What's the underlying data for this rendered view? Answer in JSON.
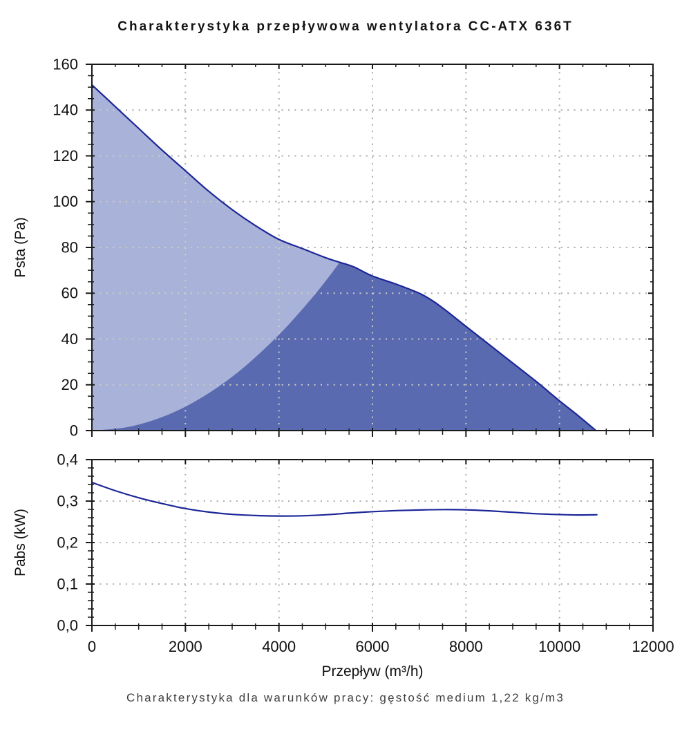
{
  "page": {
    "title": "Charakterystyka przepływowa wentylatora CC-ATX 636T",
    "caption": "Charakterystyka dla warunków pracy: gęstość medium 1,22 kg/m3"
  },
  "colors": {
    "fill_light": "#a9b2d8",
    "fill_dark": "#5a6ab0",
    "curve": "#1c2798",
    "grid_on_white": "#aeaeab",
    "grid_on_fill": "#cfcec2",
    "axis": "#1a1a1a",
    "text": "#111111",
    "caption_text": "#3f3f3f"
  },
  "chart_data": [
    {
      "type": "area",
      "title": "Charakterystyka przepływowa wentylatora CC-ATX 636T",
      "ylabel": "Psta (Pa)",
      "ylim": [
        0,
        160
      ],
      "yticks": [
        0,
        20,
        40,
        60,
        80,
        100,
        120,
        140,
        160
      ],
      "ytick_labels": [
        "0",
        "20",
        "40",
        "60",
        "80",
        "100",
        "120",
        "140",
        "160"
      ],
      "y_minor_step": 5,
      "xlim": [
        0,
        12000
      ],
      "xticks": [
        0,
        2000,
        4000,
        6000,
        8000,
        10000,
        12000
      ],
      "x_minor_step": 500,
      "grid_x": [
        2000,
        4000,
        6000,
        8000,
        10000
      ],
      "grid_y": [
        20,
        40,
        60,
        80,
        100,
        120,
        140
      ],
      "grid": true,
      "legend": "none",
      "series": [
        {
          "name": "fan-curve",
          "x": [
            0,
            500,
            1000,
            1500,
            2000,
            2500,
            3000,
            3500,
            4000,
            4500,
            5000,
            5300,
            5600,
            6000,
            6500,
            7000,
            7300,
            7600,
            8000,
            8500,
            9000,
            9500,
            10000,
            10400,
            10780
          ],
          "y": [
            151,
            141.5,
            132,
            122.5,
            113.5,
            104.5,
            96.5,
            89.5,
            83.5,
            79.5,
            75.5,
            73.5,
            71.5,
            67.5,
            64,
            60,
            56.5,
            52,
            45.5,
            37.5,
            29.5,
            21.5,
            13,
            6.5,
            0
          ]
        },
        {
          "name": "system-resistance-boundary",
          "x": [
            0,
            800,
            1600,
            2400,
            3200,
            4000,
            4600,
            5000,
            5300
          ],
          "y": [
            0,
            1.7,
            6.7,
            15.1,
            26.8,
            41.9,
            55.4,
            65.4,
            73.5
          ]
        }
      ]
    },
    {
      "type": "line",
      "ylabel": "Pabs (kW)",
      "xlabel": "Przepływ (m³/h)",
      "ylim": [
        0,
        0.4
      ],
      "yticks": [
        0,
        0.1,
        0.2,
        0.3,
        0.4
      ],
      "ytick_labels": [
        "0,0",
        "0,1",
        "0,2",
        "0,3",
        "0,4"
      ],
      "y_minor_step": 0.02,
      "xlim": [
        0,
        12000
      ],
      "xticks": [
        0,
        2000,
        4000,
        6000,
        8000,
        10000,
        12000
      ],
      "xtick_labels": [
        "0",
        "2000",
        "4000",
        "6000",
        "8000",
        "10000",
        "12000"
      ],
      "x_minor_step": 500,
      "grid_x": [
        2000,
        4000,
        6000,
        8000,
        10000
      ],
      "grid_y": [
        0.1,
        0.2,
        0.3
      ],
      "grid": true,
      "legend": "none",
      "series": [
        {
          "name": "pabs-curve",
          "x": [
            0,
            500,
            1000,
            1500,
            2000,
            2500,
            3000,
            3500,
            4000,
            4500,
            5000,
            5500,
            6000,
            6500,
            7000,
            7500,
            8000,
            8500,
            9000,
            9500,
            10000,
            10400,
            10800
          ],
          "y": [
            0.345,
            0.325,
            0.308,
            0.294,
            0.282,
            0.2735,
            0.268,
            0.2652,
            0.264,
            0.2645,
            0.267,
            0.271,
            0.2745,
            0.277,
            0.2785,
            0.2795,
            0.279,
            0.2765,
            0.273,
            0.2695,
            0.2675,
            0.2665,
            0.267
          ]
        }
      ]
    }
  ]
}
